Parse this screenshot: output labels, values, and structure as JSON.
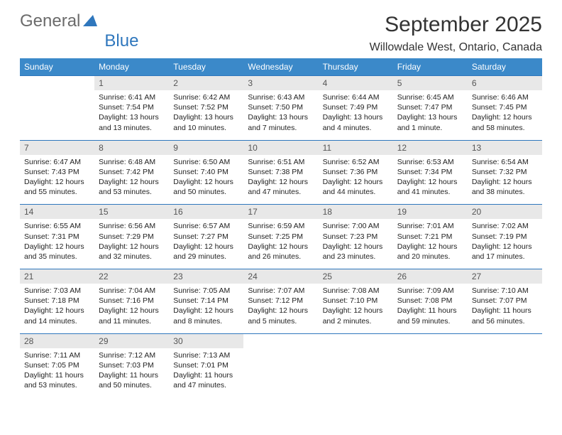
{
  "logo": {
    "text_gray": "General",
    "text_blue": "Blue",
    "tri_color": "#2f77bd"
  },
  "header": {
    "title": "September 2025",
    "location": "Willowdale West, Ontario, Canada"
  },
  "colors": {
    "header_bg": "#3b89c9",
    "header_fg": "#ffffff",
    "daynum_bg": "#e8e8e8",
    "rule": "#2f77bd"
  },
  "weekdays": [
    "Sunday",
    "Monday",
    "Tuesday",
    "Wednesday",
    "Thursday",
    "Friday",
    "Saturday"
  ],
  "weeks": [
    [
      null,
      {
        "n": "1",
        "sunrise": "6:41 AM",
        "sunset": "7:54 PM",
        "day": "13 hours and 13 minutes."
      },
      {
        "n": "2",
        "sunrise": "6:42 AM",
        "sunset": "7:52 PM",
        "day": "13 hours and 10 minutes."
      },
      {
        "n": "3",
        "sunrise": "6:43 AM",
        "sunset": "7:50 PM",
        "day": "13 hours and 7 minutes."
      },
      {
        "n": "4",
        "sunrise": "6:44 AM",
        "sunset": "7:49 PM",
        "day": "13 hours and 4 minutes."
      },
      {
        "n": "5",
        "sunrise": "6:45 AM",
        "sunset": "7:47 PM",
        "day": "13 hours and 1 minute."
      },
      {
        "n": "6",
        "sunrise": "6:46 AM",
        "sunset": "7:45 PM",
        "day": "12 hours and 58 minutes."
      }
    ],
    [
      {
        "n": "7",
        "sunrise": "6:47 AM",
        "sunset": "7:43 PM",
        "day": "12 hours and 55 minutes."
      },
      {
        "n": "8",
        "sunrise": "6:48 AM",
        "sunset": "7:42 PM",
        "day": "12 hours and 53 minutes."
      },
      {
        "n": "9",
        "sunrise": "6:50 AM",
        "sunset": "7:40 PM",
        "day": "12 hours and 50 minutes."
      },
      {
        "n": "10",
        "sunrise": "6:51 AM",
        "sunset": "7:38 PM",
        "day": "12 hours and 47 minutes."
      },
      {
        "n": "11",
        "sunrise": "6:52 AM",
        "sunset": "7:36 PM",
        "day": "12 hours and 44 minutes."
      },
      {
        "n": "12",
        "sunrise": "6:53 AM",
        "sunset": "7:34 PM",
        "day": "12 hours and 41 minutes."
      },
      {
        "n": "13",
        "sunrise": "6:54 AM",
        "sunset": "7:32 PM",
        "day": "12 hours and 38 minutes."
      }
    ],
    [
      {
        "n": "14",
        "sunrise": "6:55 AM",
        "sunset": "7:31 PM",
        "day": "12 hours and 35 minutes."
      },
      {
        "n": "15",
        "sunrise": "6:56 AM",
        "sunset": "7:29 PM",
        "day": "12 hours and 32 minutes."
      },
      {
        "n": "16",
        "sunrise": "6:57 AM",
        "sunset": "7:27 PM",
        "day": "12 hours and 29 minutes."
      },
      {
        "n": "17",
        "sunrise": "6:59 AM",
        "sunset": "7:25 PM",
        "day": "12 hours and 26 minutes."
      },
      {
        "n": "18",
        "sunrise": "7:00 AM",
        "sunset": "7:23 PM",
        "day": "12 hours and 23 minutes."
      },
      {
        "n": "19",
        "sunrise": "7:01 AM",
        "sunset": "7:21 PM",
        "day": "12 hours and 20 minutes."
      },
      {
        "n": "20",
        "sunrise": "7:02 AM",
        "sunset": "7:19 PM",
        "day": "12 hours and 17 minutes."
      }
    ],
    [
      {
        "n": "21",
        "sunrise": "7:03 AM",
        "sunset": "7:18 PM",
        "day": "12 hours and 14 minutes."
      },
      {
        "n": "22",
        "sunrise": "7:04 AM",
        "sunset": "7:16 PM",
        "day": "12 hours and 11 minutes."
      },
      {
        "n": "23",
        "sunrise": "7:05 AM",
        "sunset": "7:14 PM",
        "day": "12 hours and 8 minutes."
      },
      {
        "n": "24",
        "sunrise": "7:07 AM",
        "sunset": "7:12 PM",
        "day": "12 hours and 5 minutes."
      },
      {
        "n": "25",
        "sunrise": "7:08 AM",
        "sunset": "7:10 PM",
        "day": "12 hours and 2 minutes."
      },
      {
        "n": "26",
        "sunrise": "7:09 AM",
        "sunset": "7:08 PM",
        "day": "11 hours and 59 minutes."
      },
      {
        "n": "27",
        "sunrise": "7:10 AM",
        "sunset": "7:07 PM",
        "day": "11 hours and 56 minutes."
      }
    ],
    [
      {
        "n": "28",
        "sunrise": "7:11 AM",
        "sunset": "7:05 PM",
        "day": "11 hours and 53 minutes."
      },
      {
        "n": "29",
        "sunrise": "7:12 AM",
        "sunset": "7:03 PM",
        "day": "11 hours and 50 minutes."
      },
      {
        "n": "30",
        "sunrise": "7:13 AM",
        "sunset": "7:01 PM",
        "day": "11 hours and 47 minutes."
      },
      null,
      null,
      null,
      null
    ]
  ],
  "labels": {
    "sunrise": "Sunrise:",
    "sunset": "Sunset:",
    "daylight": "Daylight:"
  }
}
